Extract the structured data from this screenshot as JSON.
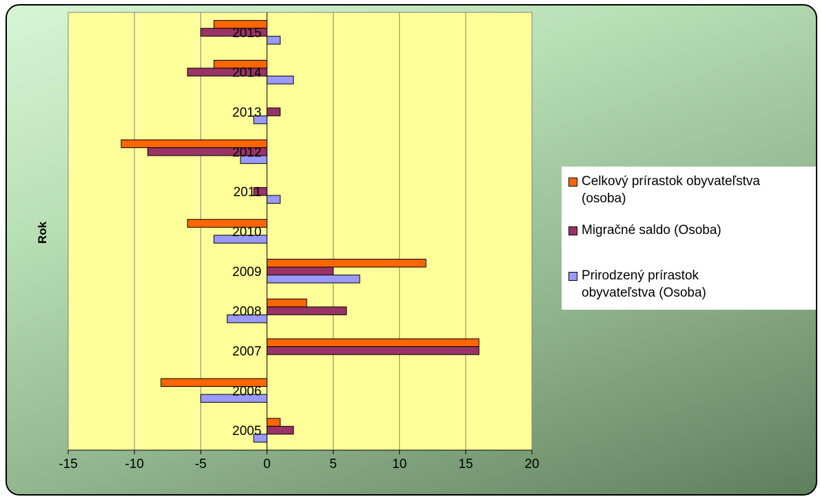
{
  "chart_data": {
    "type": "bar",
    "orientation": "horizontal",
    "categories": [
      "2005",
      "2006",
      "2007",
      "2008",
      "2009",
      "2010",
      "2011",
      "2012",
      "2013",
      "2014",
      "2015"
    ],
    "series": [
      {
        "name": "Celkový prírastok obyvateľstva (osoba)",
        "color": "#ff6600",
        "values": [
          1,
          -8,
          16,
          3,
          12,
          -6,
          0,
          -11,
          0,
          -4,
          -4
        ]
      },
      {
        "name": "Migračné saldo (Osoba)",
        "color": "#993366",
        "values": [
          2,
          0,
          16,
          6,
          5,
          0,
          -1,
          -9,
          1,
          -6,
          -5
        ]
      },
      {
        "name": "Prirodzený prírastok obyvateľstva (Osoba)",
        "color": "#9999ff",
        "values": [
          -1,
          -5,
          0,
          -3,
          7,
          -4,
          1,
          -2,
          -1,
          2,
          1
        ]
      }
    ],
    "xlim": [
      -15,
      20
    ],
    "x_ticks": [
      -15,
      -10,
      -5,
      0,
      5,
      10,
      15,
      20
    ],
    "ylabel": "Rok",
    "xlabel": "",
    "grid": "vertical",
    "plot_background": "#ffff99",
    "legend_position": "right"
  },
  "legend": {
    "item1": "Celkový prírastok obyvateľstva\n(osoba)",
    "item2": "Migračné saldo (Osoba)",
    "item3": "Prirodzený prírastok\nobyvateľstva (Osoba)"
  },
  "colors": {
    "series1": "#ff6600",
    "series2": "#993366",
    "series3": "#9999ff"
  }
}
